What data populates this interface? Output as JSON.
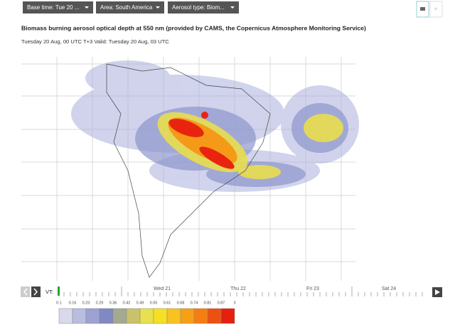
{
  "toolbar": {
    "base_time": "Base time: Tue 20 ...",
    "area": "Area: South America",
    "aerosol_type": "Aerosol type: Biom..."
  },
  "header": {
    "title": "Biomass burning aerosol optical depth at 550 nm (provided by CAMS, the Copernicus Atmosphere Monitoring Service)",
    "subtitle": "Tuesday 20 Aug, 00 UTC T+3 Valid: Tuesday 20 Aug, 03 UTC"
  },
  "timeline": {
    "label": "VT:",
    "days": [
      "Wed 21",
      "Thu 22",
      "Fri 23",
      "Sat 24"
    ]
  },
  "legend": {
    "labels": [
      "0.1",
      "0.16",
      "0.23",
      "0.29",
      "0.36",
      "0.42",
      "0.49",
      "0.55",
      "0.61",
      "0.68",
      "0.74",
      "0.81",
      "0.87",
      "3"
    ],
    "colors": [
      "#d9d9ec",
      "#b9bde0",
      "#9ca2d1",
      "#8189c2",
      "#a3aa8f",
      "#c9c26c",
      "#e8e04f",
      "#f7e024",
      "#f8c21f",
      "#f7a014",
      "#f57e12",
      "#ee5010",
      "#e6200e"
    ]
  }
}
